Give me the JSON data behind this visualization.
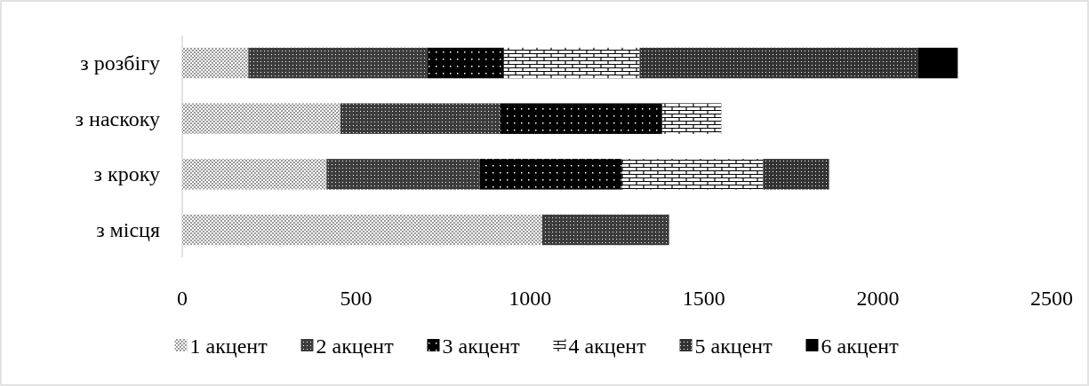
{
  "chart_data": {
    "type": "bar",
    "orientation": "horizontal",
    "stacked": true,
    "categories": [
      "з розбігу",
      "з наскоку",
      "з кроку",
      "з місця"
    ],
    "series": [
      {
        "name": "1 акцент",
        "color": "#9a9a9a",
        "values": [
          190,
          455,
          415,
          1035
        ]
      },
      {
        "name": "2 акцент",
        "color": "#3c3c3c",
        "values": [
          515,
          460,
          440,
          365
        ]
      },
      {
        "name": "3 акцент",
        "color": "#000000",
        "values": [
          220,
          465,
          410,
          null
        ]
      },
      {
        "name": "4 акцент",
        "color": "#ffffff",
        "values": [
          390,
          170,
          405,
          null
        ]
      },
      {
        "name": "5 акцент",
        "color": "#333333",
        "values": [
          800,
          null,
          190,
          null
        ]
      },
      {
        "name": "6 акцент",
        "color": "#000000",
        "values": [
          115,
          null,
          null,
          null
        ]
      }
    ],
    "xlim": [
      0,
      2500
    ],
    "xticks": [
      0,
      500,
      1000,
      1500,
      2000,
      2500
    ],
    "legend": "bottom",
    "grid": false
  }
}
